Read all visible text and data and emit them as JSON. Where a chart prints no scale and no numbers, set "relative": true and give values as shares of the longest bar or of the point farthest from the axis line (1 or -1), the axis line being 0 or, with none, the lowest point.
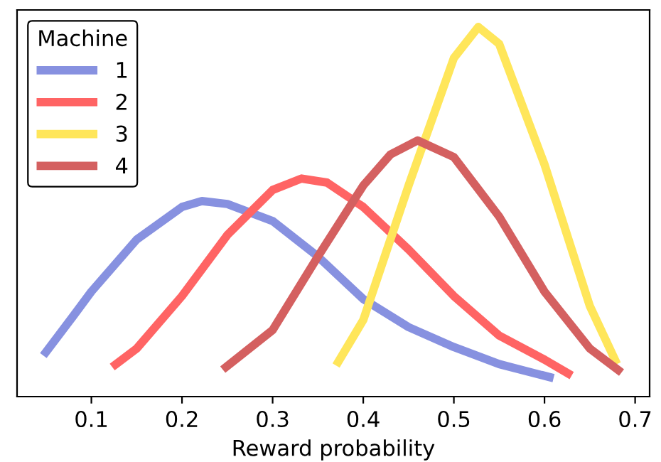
{
  "chart_data": {
    "type": "line",
    "relative": true,
    "xlabel": "Reward probability",
    "legend_title": "Machine",
    "legend": "top left",
    "grid": false,
    "marker": "none",
    "line_style": "solid",
    "xlim": [
      0.018,
      0.716
    ],
    "xticks": [
      0.1,
      0.2,
      0.3,
      0.4,
      0.5,
      0.6,
      0.7
    ],
    "tick_labels": "x",
    "series": [
      {
        "name": "1",
        "color": "#8791e0",
        "x": [
          0.047,
          0.08,
          0.1,
          0.15,
          0.2,
          0.222,
          0.25,
          0.3,
          0.35,
          0.4,
          0.45,
          0.5,
          0.55,
          0.61
        ],
        "values": [
          0.111,
          0.218,
          0.284,
          0.425,
          0.513,
          0.529,
          0.521,
          0.475,
          0.379,
          0.264,
          0.188,
          0.134,
          0.088,
          0.05
        ]
      },
      {
        "name": "2",
        "color": "#ff6464",
        "x": [
          0.123,
          0.15,
          0.2,
          0.25,
          0.3,
          0.332,
          0.36,
          0.4,
          0.45,
          0.5,
          0.55,
          0.6,
          0.63
        ],
        "values": [
          0.08,
          0.13,
          0.272,
          0.437,
          0.559,
          0.59,
          0.579,
          0.513,
          0.398,
          0.272,
          0.165,
          0.1,
          0.057
        ]
      },
      {
        "name": "3",
        "color": "#ffe65a",
        "x": [
          0.37,
          0.4,
          0.45,
          0.5,
          0.527,
          0.55,
          0.6,
          0.65,
          0.68
        ],
        "values": [
          0.084,
          0.207,
          0.571,
          0.916,
          1,
          0.954,
          0.628,
          0.245,
          0.088
        ]
      },
      {
        "name": "4",
        "color": "#d46060",
        "x": [
          0.245,
          0.3,
          0.35,
          0.4,
          0.43,
          0.46,
          0.5,
          0.55,
          0.6,
          0.65,
          0.685
        ],
        "values": [
          0.073,
          0.18,
          0.379,
          0.571,
          0.655,
          0.693,
          0.648,
          0.487,
          0.284,
          0.13,
          0.065
        ]
      }
    ]
  }
}
